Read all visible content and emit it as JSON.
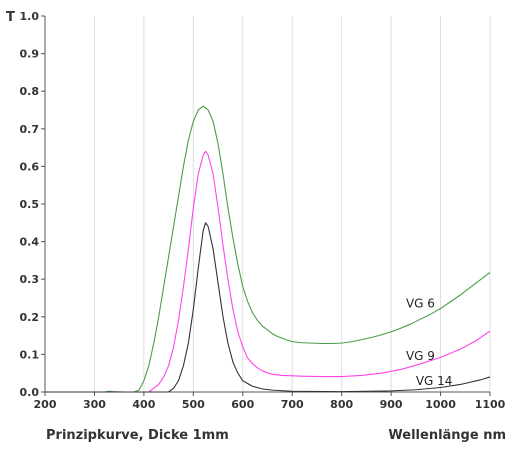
{
  "footer": {
    "caption": "Prinzipkurve, Dicke 1mm",
    "xlabel": "Wellenlänge nm"
  },
  "chart_data": {
    "type": "line",
    "title": "",
    "xlabel": "Wellenlänge nm",
    "ylabel": "T",
    "xlim": [
      200,
      1100
    ],
    "ylim": [
      0,
      1.0
    ],
    "x_ticks": [
      200,
      300,
      400,
      500,
      600,
      700,
      800,
      900,
      1000,
      1100
    ],
    "y_ticks": [
      0.0,
      0.1,
      0.2,
      0.3,
      0.4,
      0.5,
      0.6,
      0.7,
      0.8,
      0.9,
      1.0
    ],
    "x_tick_labels": [
      "200",
      "300",
      "400",
      "500",
      "600",
      "700",
      "800",
      "900",
      "1000",
      "1100"
    ],
    "y_tick_labels": [
      "0.0",
      "0.1",
      "0.2",
      "0.3",
      "0.4",
      "0.5",
      "0.6",
      "0.7",
      "0.8",
      "0.9",
      "1.0"
    ],
    "grid": {
      "x": true,
      "y": false
    },
    "series": [
      {
        "name": "VG 6",
        "color": "#4a9e4a",
        "points": [
          [
            200,
            0
          ],
          [
            320,
            0
          ],
          [
            330,
            0.002
          ],
          [
            340,
            0.001
          ],
          [
            360,
            0
          ],
          [
            380,
            0
          ],
          [
            390,
            0.005
          ],
          [
            400,
            0.03
          ],
          [
            410,
            0.07
          ],
          [
            420,
            0.13
          ],
          [
            430,
            0.2
          ],
          [
            440,
            0.28
          ],
          [
            450,
            0.36
          ],
          [
            460,
            0.44
          ],
          [
            470,
            0.52
          ],
          [
            480,
            0.6
          ],
          [
            490,
            0.67
          ],
          [
            500,
            0.72
          ],
          [
            510,
            0.75
          ],
          [
            520,
            0.76
          ],
          [
            530,
            0.75
          ],
          [
            540,
            0.72
          ],
          [
            550,
            0.66
          ],
          [
            560,
            0.58
          ],
          [
            570,
            0.49
          ],
          [
            580,
            0.41
          ],
          [
            590,
            0.34
          ],
          [
            600,
            0.28
          ],
          [
            610,
            0.24
          ],
          [
            620,
            0.21
          ],
          [
            630,
            0.19
          ],
          [
            640,
            0.175
          ],
          [
            650,
            0.165
          ],
          [
            660,
            0.155
          ],
          [
            670,
            0.148
          ],
          [
            680,
            0.143
          ],
          [
            690,
            0.138
          ],
          [
            700,
            0.134
          ],
          [
            720,
            0.131
          ],
          [
            740,
            0.13
          ],
          [
            760,
            0.129
          ],
          [
            780,
            0.129
          ],
          [
            800,
            0.13
          ],
          [
            820,
            0.134
          ],
          [
            840,
            0.139
          ],
          [
            860,
            0.145
          ],
          [
            880,
            0.152
          ],
          [
            900,
            0.16
          ],
          [
            920,
            0.17
          ],
          [
            940,
            0.181
          ],
          [
            960,
            0.194
          ],
          [
            980,
            0.207
          ],
          [
            1000,
            0.222
          ],
          [
            1020,
            0.24
          ],
          [
            1040,
            0.258
          ],
          [
            1060,
            0.278
          ],
          [
            1080,
            0.298
          ],
          [
            1100,
            0.318
          ]
        ]
      },
      {
        "name": "VG 9",
        "color": "#ff44ee",
        "points": [
          [
            200,
            0
          ],
          [
            410,
            0
          ],
          [
            420,
            0.01
          ],
          [
            430,
            0.02
          ],
          [
            440,
            0.04
          ],
          [
            450,
            0.07
          ],
          [
            460,
            0.12
          ],
          [
            470,
            0.19
          ],
          [
            480,
            0.28
          ],
          [
            490,
            0.38
          ],
          [
            500,
            0.49
          ],
          [
            510,
            0.58
          ],
          [
            520,
            0.63
          ],
          [
            525,
            0.64
          ],
          [
            530,
            0.63
          ],
          [
            540,
            0.58
          ],
          [
            550,
            0.49
          ],
          [
            560,
            0.39
          ],
          [
            570,
            0.3
          ],
          [
            580,
            0.22
          ],
          [
            590,
            0.16
          ],
          [
            600,
            0.12
          ],
          [
            610,
            0.09
          ],
          [
            620,
            0.075
          ],
          [
            630,
            0.064
          ],
          [
            640,
            0.056
          ],
          [
            650,
            0.051
          ],
          [
            660,
            0.047
          ],
          [
            680,
            0.044
          ],
          [
            700,
            0.043
          ],
          [
            720,
            0.042
          ],
          [
            760,
            0.041
          ],
          [
            800,
            0.041
          ],
          [
            840,
            0.044
          ],
          [
            880,
            0.05
          ],
          [
            920,
            0.06
          ],
          [
            960,
            0.075
          ],
          [
            1000,
            0.092
          ],
          [
            1040,
            0.114
          ],
          [
            1070,
            0.135
          ],
          [
            1100,
            0.162
          ]
        ]
      },
      {
        "name": "VG 14",
        "color": "#333333",
        "points": [
          [
            200,
            0
          ],
          [
            450,
            0
          ],
          [
            460,
            0.01
          ],
          [
            470,
            0.03
          ],
          [
            480,
            0.07
          ],
          [
            490,
            0.13
          ],
          [
            500,
            0.22
          ],
          [
            510,
            0.33
          ],
          [
            520,
            0.43
          ],
          [
            525,
            0.45
          ],
          [
            530,
            0.44
          ],
          [
            540,
            0.38
          ],
          [
            550,
            0.29
          ],
          [
            560,
            0.2
          ],
          [
            570,
            0.13
          ],
          [
            580,
            0.08
          ],
          [
            590,
            0.05
          ],
          [
            600,
            0.03
          ],
          [
            620,
            0.015
          ],
          [
            640,
            0.008
          ],
          [
            660,
            0.005
          ],
          [
            700,
            0.002
          ],
          [
            800,
            0.001
          ],
          [
            900,
            0.003
          ],
          [
            950,
            0.006
          ],
          [
            1000,
            0.012
          ],
          [
            1040,
            0.02
          ],
          [
            1080,
            0.032
          ],
          [
            1100,
            0.04
          ]
        ]
      }
    ],
    "series_labels": [
      {
        "text": "VG 6",
        "x": 930,
        "y": 0.225
      },
      {
        "text": "VG 9",
        "x": 930,
        "y": 0.085
      },
      {
        "text": "VG 14",
        "x": 950,
        "y": 0.018
      }
    ]
  }
}
